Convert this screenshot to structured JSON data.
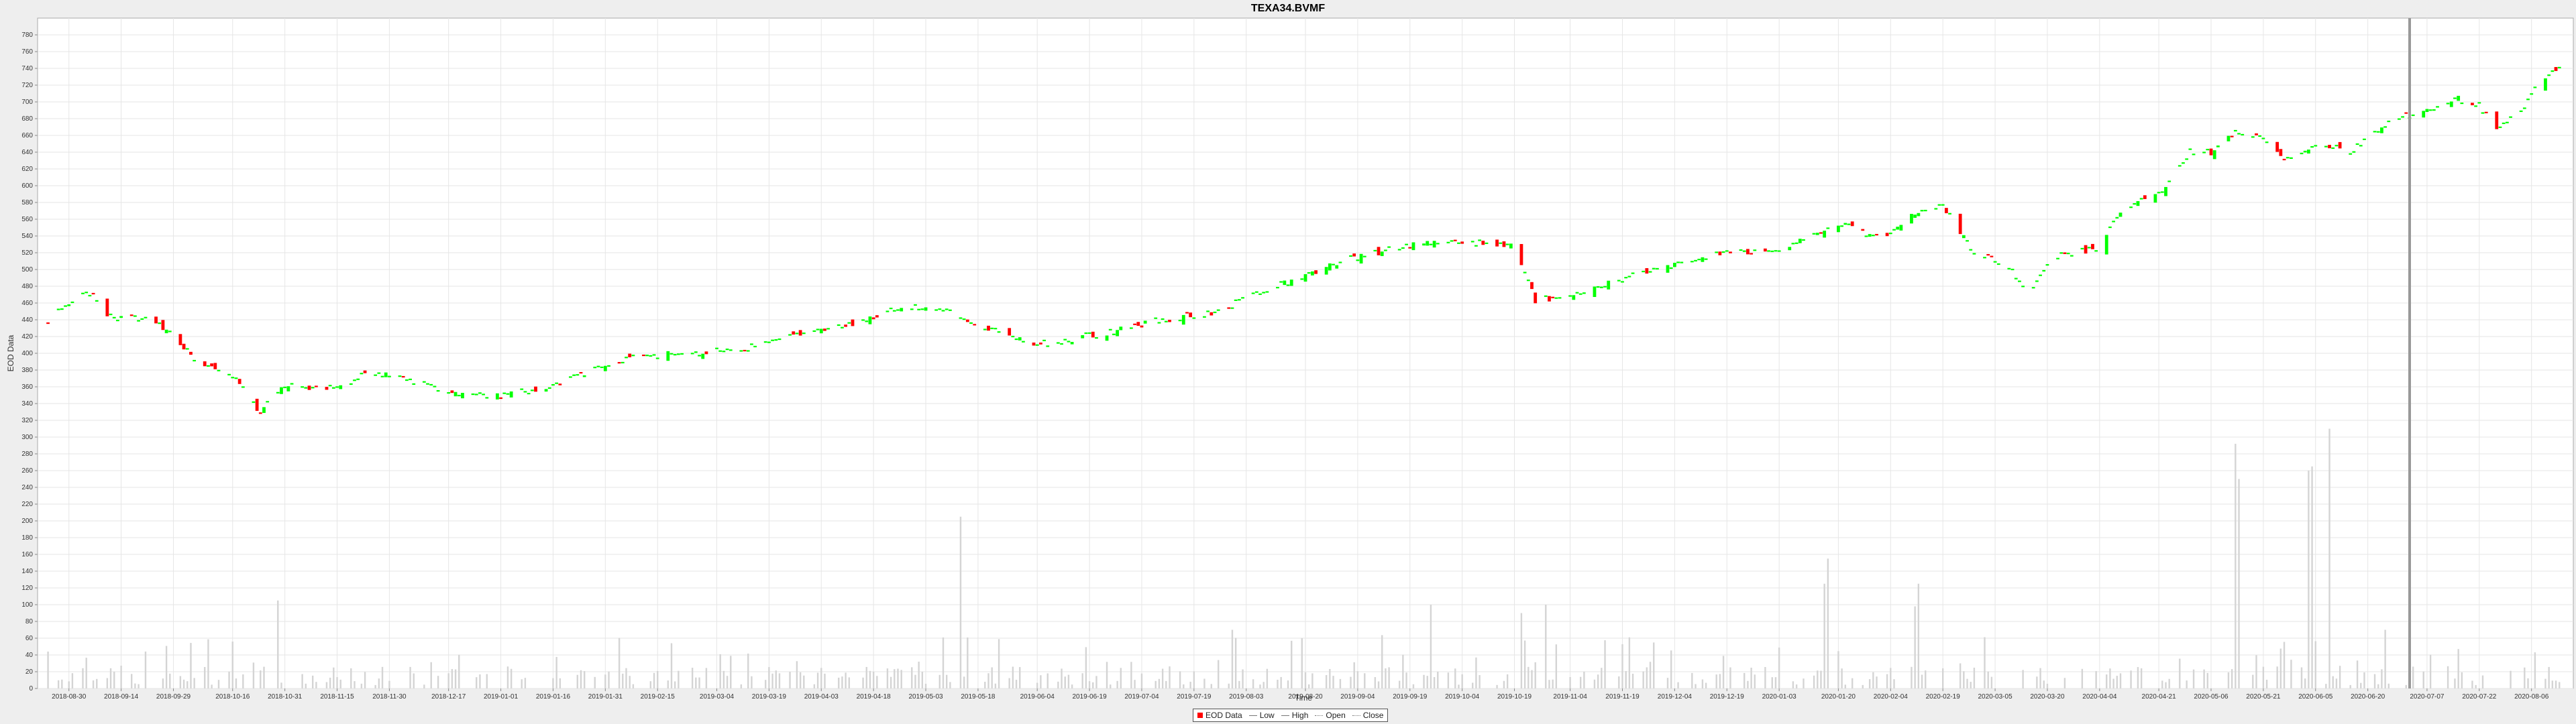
{
  "chart_data": {
    "type": "candlestick",
    "title": "TEXA34.BVMF",
    "xlabel": "Time",
    "ylabel": "EOD Data",
    "ylim": [
      0,
      800
    ],
    "y_ticks": [
      0,
      20,
      40,
      60,
      80,
      100,
      120,
      140,
      160,
      180,
      200,
      220,
      240,
      260,
      280,
      300,
      320,
      340,
      360,
      380,
      400,
      420,
      440,
      460,
      480,
      500,
      520,
      540,
      560,
      580,
      600,
      620,
      640,
      660,
      680,
      700,
      720,
      740,
      760,
      780
    ],
    "x_tick_labels": [
      "2018-08-30",
      "2018-09-14",
      "2018-09-29",
      "2018-10-16",
      "2018-10-31",
      "2018-11-15",
      "2018-11-30",
      "2018-12-17",
      "2019-01-01",
      "2019-01-16",
      "2019-01-31",
      "2019-02-15",
      "2019-03-04",
      "2019-03-19",
      "2019-04-03",
      "2019-04-18",
      "2019-05-03",
      "2019-05-18",
      "2019-06-04",
      "2019-06-19",
      "2019-07-04",
      "2019-07-19",
      "2019-08-03",
      "2019-08-20",
      "2019-09-04",
      "2019-09-19",
      "2019-10-04",
      "2019-10-19",
      "2019-11-04",
      "2019-11-19",
      "2019-12-04",
      "2019-12-19",
      "2020-01-03",
      "2020-01-20",
      "2020-02-04",
      "2020-02-19",
      "2020-03-05",
      "2020-03-20",
      "2020-04-04",
      "2020-04-21",
      "2020-05-06",
      "2020-05-21",
      "2020-06-05",
      "2020-06-20",
      "2020-07-07",
      "2020-07-22",
      "2020-08-06"
    ],
    "close_anchors": [
      [
        "2018-08-24",
        435
      ],
      [
        "2018-08-30",
        462
      ],
      [
        "2018-09-05",
        472
      ],
      [
        "2018-09-10",
        447
      ],
      [
        "2018-09-14",
        441
      ],
      [
        "2018-09-22",
        440
      ],
      [
        "2018-09-29",
        422
      ],
      [
        "2018-10-05",
        392
      ],
      [
        "2018-10-16",
        372
      ],
      [
        "2018-10-24",
        330
      ],
      [
        "2018-10-31",
        362
      ],
      [
        "2018-11-15",
        358
      ],
      [
        "2018-11-25",
        378
      ],
      [
        "2018-12-05",
        368
      ],
      [
        "2018-12-20",
        352
      ],
      [
        "2019-01-01",
        348
      ],
      [
        "2019-01-16",
        362
      ],
      [
        "2019-02-05",
        392
      ],
      [
        "2019-02-20",
        400
      ],
      [
        "2019-03-10",
        403
      ],
      [
        "2019-03-25",
        418
      ],
      [
        "2019-04-10",
        432
      ],
      [
        "2019-04-25",
        455
      ],
      [
        "2019-05-10",
        452
      ],
      [
        "2019-05-18",
        432
      ],
      [
        "2019-06-04",
        410
      ],
      [
        "2019-06-25",
        425
      ],
      [
        "2019-07-10",
        440
      ],
      [
        "2019-07-25",
        448
      ],
      [
        "2019-08-03",
        465
      ],
      [
        "2019-08-18",
        490
      ],
      [
        "2019-09-01",
        512
      ],
      [
        "2019-09-20",
        530
      ],
      [
        "2019-10-05",
        532
      ],
      [
        "2019-10-19",
        528
      ],
      [
        "2019-10-25",
        462
      ],
      [
        "2019-11-04",
        470
      ],
      [
        "2019-11-20",
        490
      ],
      [
        "2019-12-05",
        505
      ],
      [
        "2019-12-19",
        520
      ],
      [
        "2020-01-05",
        525
      ],
      [
        "2020-01-20",
        555
      ],
      [
        "2020-02-01",
        535
      ],
      [
        "2020-02-10",
        565
      ],
      [
        "2020-02-19",
        575
      ],
      [
        "2020-02-28",
        520
      ],
      [
        "2020-03-08",
        505
      ],
      [
        "2020-03-15",
        475
      ],
      [
        "2020-03-22",
        515
      ],
      [
        "2020-04-04",
        525
      ],
      [
        "2020-04-10",
        570
      ],
      [
        "2020-04-21",
        590
      ],
      [
        "2020-04-30",
        640
      ],
      [
        "2020-05-06",
        640
      ],
      [
        "2020-05-14",
        665
      ],
      [
        "2020-05-21",
        655
      ],
      [
        "2020-05-28",
        630
      ],
      [
        "2020-06-05",
        650
      ],
      [
        "2020-06-15",
        640
      ],
      [
        "2020-06-22",
        665
      ],
      [
        "2020-06-30",
        682
      ],
      [
        "2020-07-07",
        690
      ],
      [
        "2020-07-15",
        705
      ],
      [
        "2020-07-22",
        695
      ],
      [
        "2020-07-27",
        670
      ],
      [
        "2020-08-03",
        690
      ],
      [
        "2020-08-08",
        720
      ],
      [
        "2020-08-14",
        742
      ]
    ],
    "volume_spikes": [
      [
        "2018-10-29",
        105
      ],
      [
        "2019-05-13",
        205
      ],
      [
        "2019-06-29",
        68
      ],
      [
        "2019-07-30",
        70
      ],
      [
        "2019-08-25",
        115
      ],
      [
        "2019-09-25",
        100
      ],
      [
        "2019-10-21",
        90
      ],
      [
        "2019-10-28",
        100
      ],
      [
        "2020-01-16",
        125
      ],
      [
        "2020-01-17",
        155
      ],
      [
        "2020-02-11",
        98
      ],
      [
        "2020-02-12",
        125
      ],
      [
        "2020-05-13",
        292
      ],
      [
        "2020-05-14",
        250
      ],
      [
        "2020-06-03",
        260
      ],
      [
        "2020-06-04",
        265
      ],
      [
        "2020-06-09",
        310
      ],
      [
        "2020-06-25",
        70
      ]
    ],
    "series": [
      {
        "name": "EOD Data",
        "color": "#ff0000"
      },
      {
        "name": "Low",
        "color": "#777777"
      },
      {
        "name": "High",
        "color": "#777777"
      },
      {
        "name": "Open",
        "color": "#777777"
      },
      {
        "name": "Close",
        "color": "#777777"
      }
    ],
    "up_color": "#00ff00",
    "down_color": "#ff0000",
    "volume_color": "#d4d4d4",
    "grid": true,
    "legend_position": "bottom"
  }
}
